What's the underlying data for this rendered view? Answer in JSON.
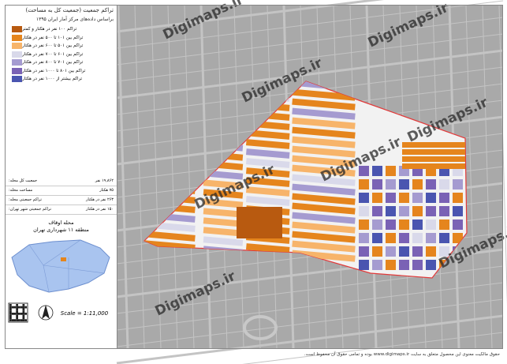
{
  "title": "تراکم جمعیت (جمعیت کل به مساحت)",
  "subtitle": "براساس داده‌های مرکز آمار ایران ۱۳۹۵",
  "legend": [
    {
      "label": "تراکم ۱۰۰ نفر در هکتار و کمتر",
      "color": "#b85a10"
    },
    {
      "label": "تراکم بین ۱۰۱ تا ۵۰۰ نفر در هکتار",
      "color": "#e5851d"
    },
    {
      "label": "تراکم بین ۵۰۱ تا ۶۰۰ نفر در هکتار",
      "color": "#f7b46a"
    },
    {
      "label": "تراکم بین ۶۰۱ تا ۷۰۰ نفر در هکتار",
      "color": "#d9d9ea"
    },
    {
      "label": "تراکم بین ۷۰۱ تا ۸۰۰ نفر در هکتار",
      "color": "#a59bd0"
    },
    {
      "label": "تراکم بین ۸۰۱ تا ۱۰۰۰ نفر در هکتار",
      "color": "#7a62b5"
    },
    {
      "label": "تراکم بیشتر از ۱۰۰۰ نفر در هکتار",
      "color": "#4a55b0"
    }
  ],
  "info": [
    {
      "label": "جمعیت کل محله:",
      "value": "۱۹,۸۶۲ نفر"
    },
    {
      "label": "مساحت محله:",
      "value": "۷۵ هکتار"
    },
    {
      "label": "تراکم جمعیتی محله:",
      "value": "۲۶۳ نفر در هکتار"
    },
    {
      "label": "تراکم جمعیتی شهر تهران:",
      "value": "۱۵۰ نفر در هکتار"
    }
  ],
  "location": {
    "name": "محله اوقاف",
    "district": "منطقه ۱۱ شهرداری تهران"
  },
  "scale": "Scale = 1:11,000",
  "watermark": "Digimaps.ir",
  "footer": "حقوق مالکیت معنوی این محصول متعلق به سایت www.digimaps.ir بوده و تمامی حقوق آن محفوظ است."
}
